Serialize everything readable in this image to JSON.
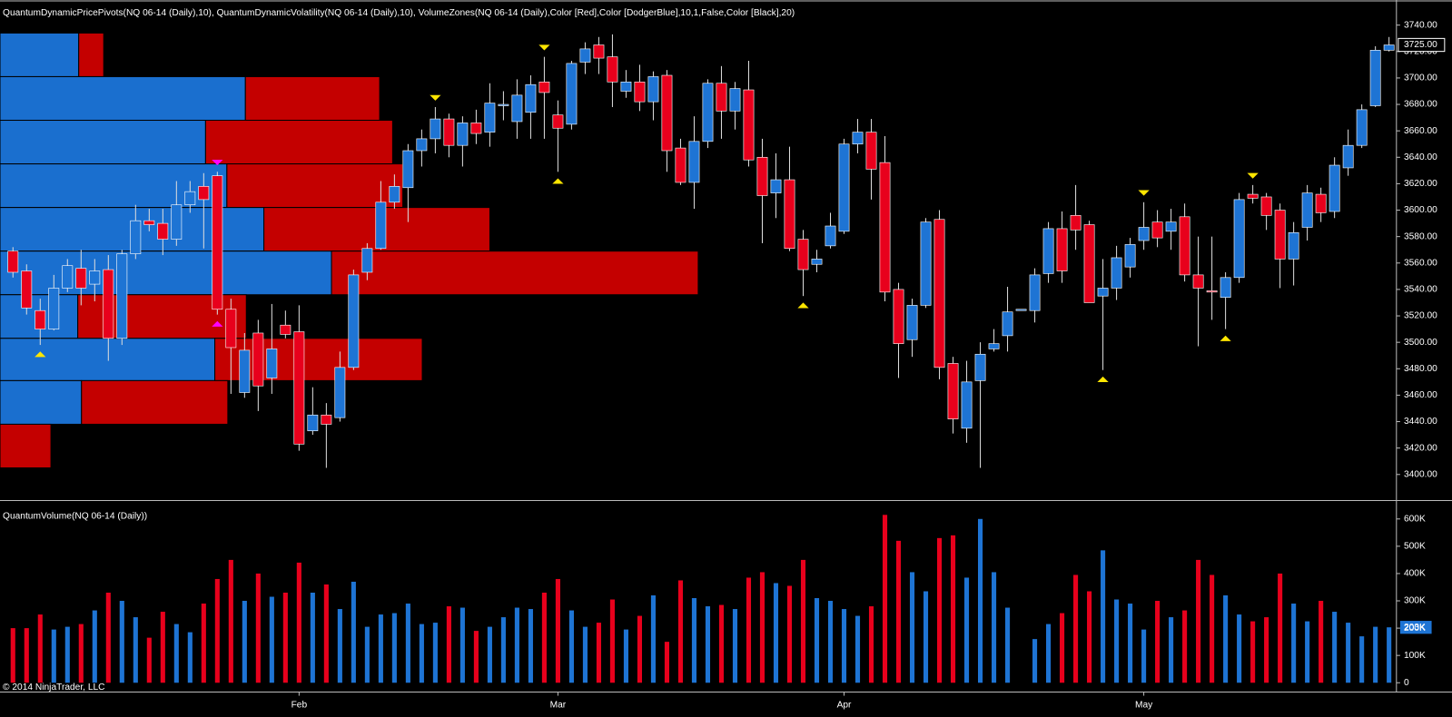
{
  "chart_data": [
    {
      "type": "candlestick",
      "title": "QuantumDynamicPricePivots(NQ 06-14 (Daily),10), QuantumDynamicVolatility(NQ 06-14 (Daily),10), VolumeZones(NQ 06-14 (Daily),Color [Red],Color [DodgerBlue],10,1,False,Color [Black],20)",
      "categories": [
        null,
        null,
        null,
        null,
        null,
        null,
        null,
        null,
        null,
        null,
        null,
        null,
        null,
        null,
        null,
        null,
        null,
        null,
        null,
        null,
        null,
        "Feb",
        null,
        null,
        null,
        null,
        null,
        null,
        null,
        null,
        null,
        null,
        null,
        null,
        null,
        null,
        null,
        null,
        null,
        null,
        "Mar",
        null,
        null,
        null,
        null,
        null,
        null,
        null,
        null,
        null,
        null,
        null,
        null,
        null,
        null,
        null,
        null,
        null,
        null,
        null,
        null,
        "Apr",
        null,
        null,
        null,
        null,
        null,
        null,
        null,
        null,
        null,
        null,
        null,
        null,
        null,
        null,
        null,
        null,
        null,
        null,
        null,
        null,
        null,
        "May",
        null,
        null,
        null,
        null,
        null,
        null,
        null,
        null,
        null,
        null,
        null,
        null,
        null,
        null,
        null,
        null,
        null,
        null
      ],
      "open": [
        3569,
        3554,
        3524,
        3510,
        3541,
        3556,
        3544,
        3555,
        3503,
        3567,
        3592,
        3590,
        3578,
        3604,
        3618,
        3626,
        3525,
        3462,
        3507,
        3473,
        3513,
        3508,
        3433,
        3445,
        3443,
        3481,
        3553,
        3571,
        3606,
        3617,
        3645,
        3654,
        3669,
        3649,
        3666,
        3659,
        3679,
        3667,
        3674,
        3697,
        3672,
        3665,
        3712,
        3725,
        3716,
        3690,
        3697,
        3682,
        3702,
        3647,
        3621,
        3652,
        3696,
        3675,
        3691,
        3640,
        3613,
        3623,
        3578,
        3559,
        3573,
        3584,
        3650,
        3659,
        3636,
        3540,
        3502,
        3528,
        3593,
        3484,
        3435,
        3471,
        3495,
        3505,
        3524,
        3524,
        3552,
        3586,
        3596,
        3589,
        3535,
        3541,
        3557,
        3577,
        3591,
        3584,
        3595,
        3551,
        3539,
        3534,
        3549,
        3612,
        3610,
        3600,
        3563,
        3587,
        3612,
        3599,
        3632,
        3649,
        3679,
        3721
      ],
      "high": [
        3572,
        3559,
        3533,
        3551,
        3563,
        3570,
        3563,
        3566,
        3570,
        3604,
        3601,
        3601,
        3622,
        3622,
        3628,
        3629,
        3533,
        3507,
        3517,
        3529,
        3524,
        3528,
        3466,
        3454,
        3493,
        3555,
        3575,
        3622,
        3627,
        3650,
        3661,
        3678,
        3673,
        3671,
        3676,
        3696,
        3690,
        3699,
        3702,
        3716,
        3683,
        3713,
        3727,
        3731,
        3733,
        3706,
        3710,
        3705,
        3706,
        3654,
        3671,
        3699,
        3709,
        3697,
        3713,
        3654,
        3643,
        3648,
        3585,
        3570,
        3598,
        3654,
        3669,
        3669,
        3656,
        3545,
        3533,
        3594,
        3600,
        3489,
        3486,
        3500,
        3510,
        3542,
        3525,
        3556,
        3591,
        3599,
        3619,
        3592,
        3563,
        3573,
        3579,
        3606,
        3600,
        3601,
        3605,
        3580,
        3580,
        3553,
        3613,
        3619,
        3613,
        3605,
        3591,
        3619,
        3617,
        3640,
        3661,
        3680,
        3724,
        3731
      ],
      "low": [
        3549,
        3521,
        3498,
        3509,
        3538,
        3528,
        3531,
        3486,
        3498,
        3563,
        3584,
        3566,
        3573,
        3598,
        3571,
        3521,
        3461,
        3458,
        3448,
        3461,
        3503,
        3418,
        3430,
        3405,
        3440,
        3479,
        3547,
        3570,
        3601,
        3591,
        3633,
        3643,
        3640,
        3633,
        3650,
        3648,
        3668,
        3654,
        3654,
        3654,
        3629,
        3661,
        3703,
        3703,
        3678,
        3685,
        3675,
        3668,
        3629,
        3619,
        3601,
        3647,
        3654,
        3661,
        3633,
        3575,
        3594,
        3569,
        3535,
        3553,
        3571,
        3582,
        3643,
        3608,
        3531,
        3473,
        3489,
        3526,
        3472,
        3431,
        3424,
        3405,
        3493,
        3493,
        3524,
        3515,
        3545,
        3545,
        3570,
        3530,
        3479,
        3532,
        3549,
        3570,
        3572,
        3570,
        3546,
        3497,
        3517,
        3510,
        3545,
        3605,
        3585,
        3541,
        3543,
        3577,
        3591,
        3594,
        3626,
        3647,
        3678,
        3720
      ],
      "close": [
        3553,
        3526,
        3510,
        3541,
        3558,
        3541,
        3554,
        3503,
        3567,
        3592,
        3589,
        3578,
        3604,
        3614,
        3608,
        3525,
        3496,
        3494,
        3467,
        3495,
        3506,
        3423,
        3445,
        3438,
        3481,
        3551,
        3571,
        3606,
        3618,
        3645,
        3654,
        3669,
        3649,
        3666,
        3658,
        3681,
        3680,
        3687,
        3695,
        3689,
        3662,
        3711,
        3722,
        3715,
        3697,
        3697,
        3682,
        3701,
        3645,
        3621,
        3652,
        3696,
        3675,
        3692,
        3638,
        3611,
        3623,
        3571,
        3555,
        3563,
        3588,
        3650,
        3659,
        3631,
        3538,
        3499,
        3528,
        3591,
        3481,
        3442,
        3470,
        3491,
        3499,
        3523,
        3525,
        3551,
        3586,
        3554,
        3585,
        3530,
        3541,
        3564,
        3574,
        3587,
        3579,
        3591,
        3551,
        3541,
        3538,
        3549,
        3608,
        3609,
        3596,
        3563,
        3583,
        3613,
        3598,
        3634,
        3649,
        3676,
        3721,
        3725
      ],
      "up_color": "#1e74d4",
      "down_color": "#e8001c",
      "current_price": {
        "value": 3725,
        "label": "3725.00"
      },
      "ylim": [
        3381,
        3759
      ],
      "yticks": [
        {
          "value": 3400,
          "label": "3400.00"
        },
        {
          "value": 3420,
          "label": "3420.00"
        },
        {
          "value": 3440,
          "label": "3440.00"
        },
        {
          "value": 3460,
          "label": "3460.00"
        },
        {
          "value": 3480,
          "label": "3480.00"
        },
        {
          "value": 3500,
          "label": "3500.00"
        },
        {
          "value": 3520,
          "label": "3520.00"
        },
        {
          "value": 3540,
          "label": "3540.00"
        },
        {
          "value": 3560,
          "label": "3560.00"
        },
        {
          "value": 3580,
          "label": "3580.00"
        },
        {
          "value": 3600,
          "label": "3600.00"
        },
        {
          "value": 3620,
          "label": "3620.00"
        },
        {
          "value": 3640,
          "label": "3640.00"
        },
        {
          "value": 3660,
          "label": "3660.00"
        },
        {
          "value": 3680,
          "label": "3680.00"
        },
        {
          "value": 3700,
          "label": "3700.00"
        },
        {
          "value": 3720,
          "label": "3720.00"
        },
        {
          "value": 3740,
          "label": "3740.00"
        }
      ],
      "volume_zones": {
        "up_color": "#1a6fcf",
        "down_color": "#c40000",
        "zones": [
          {
            "low": 3701,
            "high": 3734,
            "up": 85,
            "down": 27
          },
          {
            "low": 3668,
            "high": 3701,
            "up": 265,
            "down": 145
          },
          {
            "low": 3635,
            "high": 3668,
            "up": 222,
            "down": 202
          },
          {
            "low": 3602,
            "high": 3635,
            "up": 245,
            "down": 190
          },
          {
            "low": 3569,
            "high": 3602,
            "up": 285,
            "down": 244
          },
          {
            "low": 3536,
            "high": 3569,
            "up": 358,
            "down": 396
          },
          {
            "low": 3503,
            "high": 3536,
            "up": 84,
            "down": 182
          },
          {
            "low": 3471,
            "high": 3503,
            "up": 232,
            "down": 224
          },
          {
            "low": 3438,
            "high": 3471,
            "up": 88,
            "down": 158
          },
          {
            "low": 3405,
            "high": 3438,
            "up": 0,
            "down": 55
          }
        ]
      },
      "pivots": [
        {
          "index": 2,
          "kind": "low",
          "color": "#ffe600"
        },
        {
          "index": 15,
          "kind": "high",
          "color": "#ff00ff"
        },
        {
          "index": 15,
          "kind": "low",
          "color": "#ff00ff"
        },
        {
          "index": 31,
          "kind": "high",
          "color": "#ffe600"
        },
        {
          "index": 39,
          "kind": "high",
          "color": "#ffe600"
        },
        {
          "index": 40,
          "kind": "low",
          "color": "#ffe600"
        },
        {
          "index": 58,
          "kind": "low",
          "color": "#ffe600"
        },
        {
          "index": 80,
          "kind": "low",
          "color": "#ffe600"
        },
        {
          "index": 83,
          "kind": "high",
          "color": "#ffe600"
        },
        {
          "index": 89,
          "kind": "low",
          "color": "#ffe600"
        },
        {
          "index": 91,
          "kind": "high",
          "color": "#ffe600"
        }
      ]
    },
    {
      "type": "bar",
      "title": "QuantumVolume(NQ 06-14 (Daily))",
      "values": [
        200000,
        200000,
        250000,
        195000,
        205000,
        215000,
        265000,
        330000,
        300000,
        240000,
        165000,
        260000,
        215000,
        185000,
        290000,
        380000,
        450000,
        300000,
        400000,
        315000,
        330000,
        440000,
        330000,
        360000,
        270000,
        370000,
        205000,
        250000,
        255000,
        290000,
        215000,
        220000,
        280000,
        275000,
        190000,
        205000,
        240000,
        275000,
        270000,
        330000,
        380000,
        265000,
        205000,
        220000,
        305000,
        195000,
        245000,
        320000,
        150000,
        375000,
        310000,
        280000,
        285000,
        270000,
        385000,
        405000,
        365000,
        355000,
        450000,
        310000,
        300000,
        270000,
        245000,
        280000,
        615000,
        520000,
        405000,
        335000,
        530000,
        540000,
        385000,
        600000,
        405000,
        275000,
        null,
        160000,
        215000,
        255000,
        395000,
        335000,
        485000,
        305000,
        290000,
        195000,
        300000,
        240000,
        265000,
        450000,
        395000,
        320000,
        250000,
        225000,
        240000,
        400000,
        290000,
        225000,
        300000,
        260000,
        220000,
        170000,
        205000,
        203000
      ],
      "value_labels": [
        null,
        null,
        null,
        null,
        null,
        null,
        null,
        null,
        null,
        null,
        null,
        null,
        null,
        null,
        null,
        null,
        null,
        null,
        null,
        null,
        null,
        null,
        null,
        null,
        null,
        null,
        null,
        null,
        null,
        null,
        null,
        null,
        null,
        null,
        null,
        null,
        null,
        null,
        null,
        null,
        null,
        null,
        null,
        null,
        null,
        null,
        null,
        null,
        null,
        null,
        null,
        null,
        null,
        null,
        null,
        null,
        null,
        null,
        null,
        null,
        null,
        null,
        null,
        null,
        null,
        null,
        null,
        null,
        null,
        null,
        null,
        null,
        null,
        null,
        null,
        null,
        null,
        null,
        null,
        null,
        null,
        null,
        null,
        null,
        null,
        null,
        null,
        null,
        null,
        null,
        null,
        null,
        null,
        null,
        null,
        null,
        null,
        null,
        null,
        null,
        null,
        "203K"
      ],
      "ylim": [
        -34000,
        654000
      ],
      "yticks": [
        0,
        {
          "value": 100000,
          "label": "100K"
        },
        {
          "value": 200000,
          "label": "200K"
        },
        {
          "value": 300000,
          "label": "300K"
        },
        {
          "value": 400000,
          "label": "400K"
        },
        {
          "value": 500000,
          "label": "500K"
        },
        {
          "value": 600000,
          "label": "600K"
        }
      ]
    }
  ],
  "footer": "© 2014 NinjaTrader, LLC"
}
